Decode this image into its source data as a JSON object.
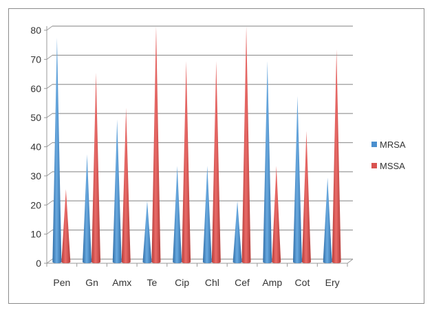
{
  "chart_data": {
    "type": "bar",
    "style": "3d-cone",
    "title": "",
    "xlabel": "",
    "ylabel": "",
    "categories": [
      "Pen",
      "Gn",
      "Amx",
      "Te",
      "Cip",
      "Chl",
      "Cef",
      "Amp",
      "Cot",
      "Ery"
    ],
    "series": [
      {
        "name": "MRSA",
        "color": "#4a8fce",
        "values": [
          76,
          36,
          48,
          20,
          32,
          32,
          20,
          68,
          56,
          28
        ]
      },
      {
        "name": "MSSA",
        "color": "#d9524f",
        "values": [
          24,
          64,
          52,
          80,
          68,
          68,
          80,
          32,
          44,
          72
        ]
      }
    ],
    "ylim": [
      0,
      80
    ],
    "yticks": [
      0,
      10,
      20,
      30,
      40,
      50,
      60,
      70,
      80
    ],
    "grid": true,
    "legend": "right"
  }
}
